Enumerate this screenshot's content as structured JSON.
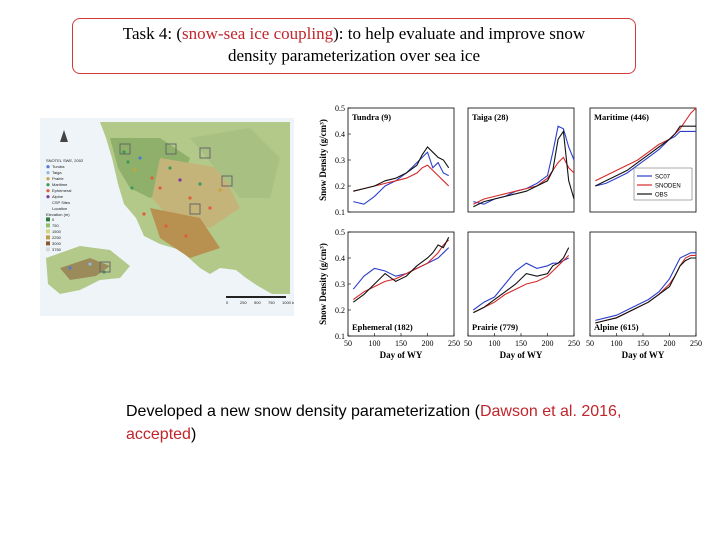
{
  "title": {
    "part1": "Task 4: (",
    "highlight": "snow-sea ice coupling",
    "part2": "): to help evaluate and improve snow",
    "line2": "density parameterization over sea ice"
  },
  "map": {
    "legend_title": "SNOTEL SWE, 2002",
    "classes": [
      {
        "label": "Tundra",
        "color": "#4e7ad6"
      },
      {
        "label": "Taiga",
        "color": "#8fb6e8"
      },
      {
        "label": "Prairie",
        "color": "#c9a23a"
      },
      {
        "label": "Maritime",
        "color": "#3b9a5c"
      },
      {
        "label": "Ephemeral",
        "color": "#e05d3a"
      },
      {
        "label": "Alpine",
        "color": "#7a3a9a"
      }
    ],
    "extra_labels": [
      "CSP Sites",
      "Location"
    ],
    "elev_title": "Elevation (m)",
    "elev_labels": [
      "0",
      "750",
      "1500",
      "2250",
      "3000",
      "3750"
    ],
    "scale_labels": [
      "0",
      "250",
      "500",
      "750",
      "1000 km"
    ]
  },
  "chart_data": {
    "type": "line",
    "ylabel": "Snow Density (g/cm³)",
    "xlabel": "Day of WY",
    "xlim": [
      50,
      250
    ],
    "ylim": [
      0.1,
      0.5
    ],
    "xticks": [
      50,
      100,
      150,
      200,
      250
    ],
    "top_yticks": [
      0.1,
      0.2,
      0.3,
      0.4,
      0.5
    ],
    "bottom_yticks": [
      0.1,
      0.2,
      0.3,
      0.4,
      0.5
    ],
    "legend": [
      "SC07",
      "SNODEN",
      "OBS"
    ],
    "series_colors": [
      "#2c3fcc",
      "#d42a2a",
      "#111111"
    ],
    "panels": [
      {
        "name": "Tundra (9)",
        "row": 0,
        "col": 0,
        "x": [
          60,
          80,
          100,
          120,
          140,
          160,
          180,
          190,
          200,
          210,
          220,
          230,
          240
        ],
        "s1": [
          0.14,
          0.13,
          0.16,
          0.2,
          0.22,
          0.25,
          0.29,
          0.31,
          0.33,
          0.27,
          0.29,
          0.25,
          0.24
        ],
        "s2": [
          0.18,
          0.19,
          0.2,
          0.21,
          0.22,
          0.23,
          0.25,
          0.27,
          0.28,
          0.26,
          0.24,
          0.22,
          0.2
        ],
        "s3": [
          0.18,
          0.19,
          0.2,
          0.22,
          0.23,
          0.25,
          0.28,
          0.32,
          0.35,
          0.33,
          0.31,
          0.3,
          0.27
        ]
      },
      {
        "name": "Taiga (28)",
        "row": 0,
        "col": 1,
        "x": [
          60,
          80,
          100,
          120,
          140,
          160,
          180,
          200,
          210,
          220,
          230,
          240,
          250
        ],
        "s1": [
          0.14,
          0.13,
          0.15,
          0.16,
          0.18,
          0.19,
          0.21,
          0.24,
          0.33,
          0.43,
          0.42,
          0.35,
          0.3
        ],
        "s2": [
          0.13,
          0.15,
          0.16,
          0.17,
          0.18,
          0.19,
          0.2,
          0.23,
          0.26,
          0.29,
          0.31,
          0.27,
          0.25
        ],
        "s3": [
          0.12,
          0.14,
          0.15,
          0.16,
          0.17,
          0.18,
          0.2,
          0.22,
          0.26,
          0.38,
          0.41,
          0.22,
          0.15
        ]
      },
      {
        "name": "Maritime (446)",
        "row": 0,
        "col": 2,
        "x": [
          60,
          80,
          100,
          120,
          140,
          160,
          180,
          200,
          210,
          220,
          230,
          240,
          250
        ],
        "s1": [
          0.2,
          0.21,
          0.23,
          0.25,
          0.28,
          0.31,
          0.34,
          0.38,
          0.39,
          0.41,
          0.41,
          0.41,
          0.41
        ],
        "s2": [
          0.22,
          0.24,
          0.26,
          0.28,
          0.3,
          0.33,
          0.36,
          0.38,
          0.4,
          0.42,
          0.45,
          0.48,
          0.5
        ],
        "s3": [
          0.2,
          0.22,
          0.24,
          0.26,
          0.29,
          0.32,
          0.35,
          0.38,
          0.4,
          0.43,
          0.43,
          0.43,
          0.43
        ]
      },
      {
        "name": "Ephemeral (182)",
        "row": 1,
        "col": 0,
        "x": [
          60,
          80,
          100,
          120,
          140,
          160,
          180,
          200,
          210,
          220,
          230,
          240
        ],
        "s1": [
          0.28,
          0.33,
          0.36,
          0.35,
          0.33,
          0.34,
          0.36,
          0.38,
          0.39,
          0.4,
          0.42,
          0.44
        ],
        "s2": [
          0.24,
          0.27,
          0.29,
          0.31,
          0.32,
          0.34,
          0.36,
          0.38,
          0.4,
          0.42,
          0.45,
          0.47
        ],
        "s3": [
          0.23,
          0.26,
          0.3,
          0.34,
          0.31,
          0.33,
          0.37,
          0.4,
          0.42,
          0.45,
          0.44,
          0.48
        ]
      },
      {
        "name": "Prairie (779)",
        "row": 1,
        "col": 1,
        "x": [
          60,
          80,
          100,
          120,
          140,
          160,
          180,
          200,
          210,
          220,
          230,
          240
        ],
        "s1": [
          0.2,
          0.23,
          0.25,
          0.3,
          0.35,
          0.38,
          0.36,
          0.37,
          0.38,
          0.38,
          0.39,
          0.4
        ],
        "s2": [
          0.19,
          0.21,
          0.23,
          0.26,
          0.28,
          0.3,
          0.31,
          0.33,
          0.35,
          0.37,
          0.39,
          0.41
        ],
        "s3": [
          0.19,
          0.21,
          0.24,
          0.27,
          0.3,
          0.34,
          0.33,
          0.34,
          0.37,
          0.38,
          0.4,
          0.44
        ]
      },
      {
        "name": "Alpine (615)",
        "row": 1,
        "col": 2,
        "x": [
          60,
          80,
          100,
          120,
          140,
          160,
          180,
          200,
          210,
          220,
          230,
          240,
          250
        ],
        "s1": [
          0.16,
          0.17,
          0.18,
          0.2,
          0.22,
          0.24,
          0.27,
          0.32,
          0.36,
          0.4,
          0.41,
          0.42,
          0.42
        ],
        "s2": [
          0.15,
          0.16,
          0.17,
          0.19,
          0.21,
          0.23,
          0.26,
          0.3,
          0.33,
          0.37,
          0.4,
          0.41,
          0.41
        ],
        "s3": [
          0.15,
          0.16,
          0.17,
          0.19,
          0.21,
          0.23,
          0.26,
          0.29,
          0.33,
          0.37,
          0.39,
          0.4,
          0.4
        ]
      }
    ]
  },
  "caption": {
    "part1": "Developed a new snow density parameterization (",
    "highlight": "Dawson et al. 2016, accepted",
    "part2": ")"
  }
}
